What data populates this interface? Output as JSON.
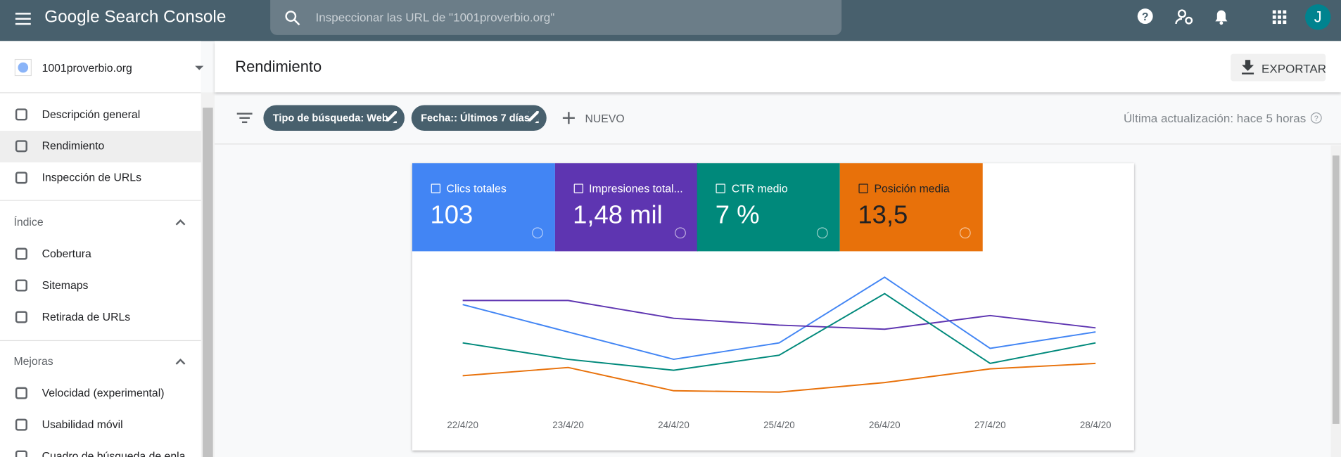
{
  "header": {
    "product": "Google Search Console",
    "search_placeholder": "Inspeccionar las URL de \"1001proverbio.org\"",
    "avatar": "J"
  },
  "sidebar": {
    "property": "1001proverbio.org",
    "items": [
      "Descripción general",
      "Rendimiento",
      "Inspección de URLs"
    ],
    "sections": [
      {
        "title": "Índice",
        "items": [
          "Cobertura",
          "Sitemaps",
          "Retirada de URLs"
        ]
      },
      {
        "title": "Mejoras",
        "items": [
          "Velocidad (experimental)",
          "Usabilidad móvil",
          "Cuadro de búsqueda de enla"
        ]
      }
    ]
  },
  "main": {
    "title": "Rendimiento",
    "export": "EXPORTAR",
    "filters": [
      "Tipo de búsqueda: Web",
      "Fecha:: Últimos 7 días"
    ],
    "new": "NUEVO",
    "last_update": "Última actualización: hace 5 horas"
  },
  "cards": [
    "103",
    "1,48 mil",
    "7 %",
    "13,5"
  ],
  "chart_data": {
    "type": "line",
    "categories": [
      "22/4/20",
      "23/4/20",
      "24/4/20",
      "25/4/20",
      "26/4/20",
      "27/4/20",
      "28/4/20"
    ],
    "ylim": [
      0,
      100
    ],
    "series": [
      {
        "name": "Clics totales",
        "color": "#4285f4",
        "values": [
          71,
          51,
          31,
          43,
          91,
          39,
          51
        ]
      },
      {
        "name": "Impresiones total...",
        "color": "#5e35b1",
        "values": [
          74,
          74,
          61,
          56,
          53,
          63,
          54
        ]
      },
      {
        "name": "CTR medio",
        "color": "#00897b",
        "values": [
          43,
          31,
          23,
          34,
          79,
          28,
          43
        ]
      },
      {
        "name": "Posición media",
        "color": "#e8710a",
        "values": [
          19,
          25,
          8,
          7,
          14,
          24,
          28
        ]
      }
    ]
  }
}
